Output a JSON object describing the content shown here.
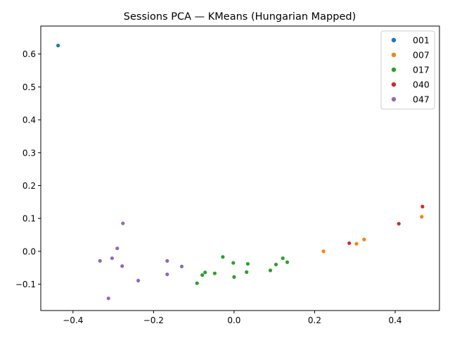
{
  "chart_data": {
    "type": "scatter",
    "title": "Sessions PCA — KMeans (Hungarian Mapped)",
    "xlabel": "",
    "ylabel": "",
    "xlim": [
      -0.48,
      0.51
    ],
    "ylim": [
      -0.18,
      0.685
    ],
    "xticks": [
      -0.4,
      -0.2,
      0.0,
      0.2,
      0.4
    ],
    "yticks": [
      -0.1,
      0.0,
      0.1,
      0.2,
      0.3,
      0.4,
      0.5,
      0.6
    ],
    "xtick_labels": [
      "−0.4",
      "−0.2",
      "0.0",
      "0.2",
      "0.4"
    ],
    "ytick_labels": [
      "−0.1",
      "0.0",
      "0.1",
      "0.2",
      "0.3",
      "0.4",
      "0.5",
      "0.6"
    ],
    "grid": false,
    "legend_position": "top-right",
    "series": [
      {
        "name": "001",
        "color": "#1f77b4",
        "points": [
          [
            -0.437,
            0.626
          ]
        ]
      },
      {
        "name": "007",
        "color": "#ff7f0e",
        "points": [
          [
            0.222,
            0.0
          ],
          [
            0.304,
            0.023
          ],
          [
            0.323,
            0.036
          ],
          [
            0.466,
            0.105
          ]
        ]
      },
      {
        "name": "017",
        "color": "#2ca02c",
        "points": [
          [
            -0.092,
            -0.097
          ],
          [
            -0.079,
            -0.072
          ],
          [
            -0.072,
            -0.064
          ],
          [
            -0.048,
            -0.067
          ],
          [
            -0.028,
            -0.017
          ],
          [
            -0.002,
            -0.035
          ],
          [
            0.0,
            -0.078
          ],
          [
            0.031,
            -0.063
          ],
          [
            0.034,
            -0.038
          ],
          [
            0.09,
            -0.058
          ],
          [
            0.104,
            -0.04
          ],
          [
            0.121,
            -0.021
          ],
          [
            0.132,
            -0.033
          ]
        ]
      },
      {
        "name": "040",
        "color": "#d62728",
        "points": [
          [
            0.286,
            0.025
          ],
          [
            0.409,
            0.084
          ],
          [
            0.468,
            0.136
          ]
        ]
      },
      {
        "name": "047",
        "color": "#9467bd",
        "points": [
          [
            -0.333,
            -0.029
          ],
          [
            -0.303,
            -0.021
          ],
          [
            -0.29,
            0.009
          ],
          [
            -0.278,
            -0.045
          ],
          [
            -0.276,
            0.085
          ],
          [
            -0.312,
            -0.143
          ],
          [
            -0.238,
            -0.089
          ],
          [
            -0.166,
            -0.029
          ],
          [
            -0.166,
            -0.07
          ],
          [
            -0.13,
            -0.046
          ]
        ]
      }
    ]
  }
}
